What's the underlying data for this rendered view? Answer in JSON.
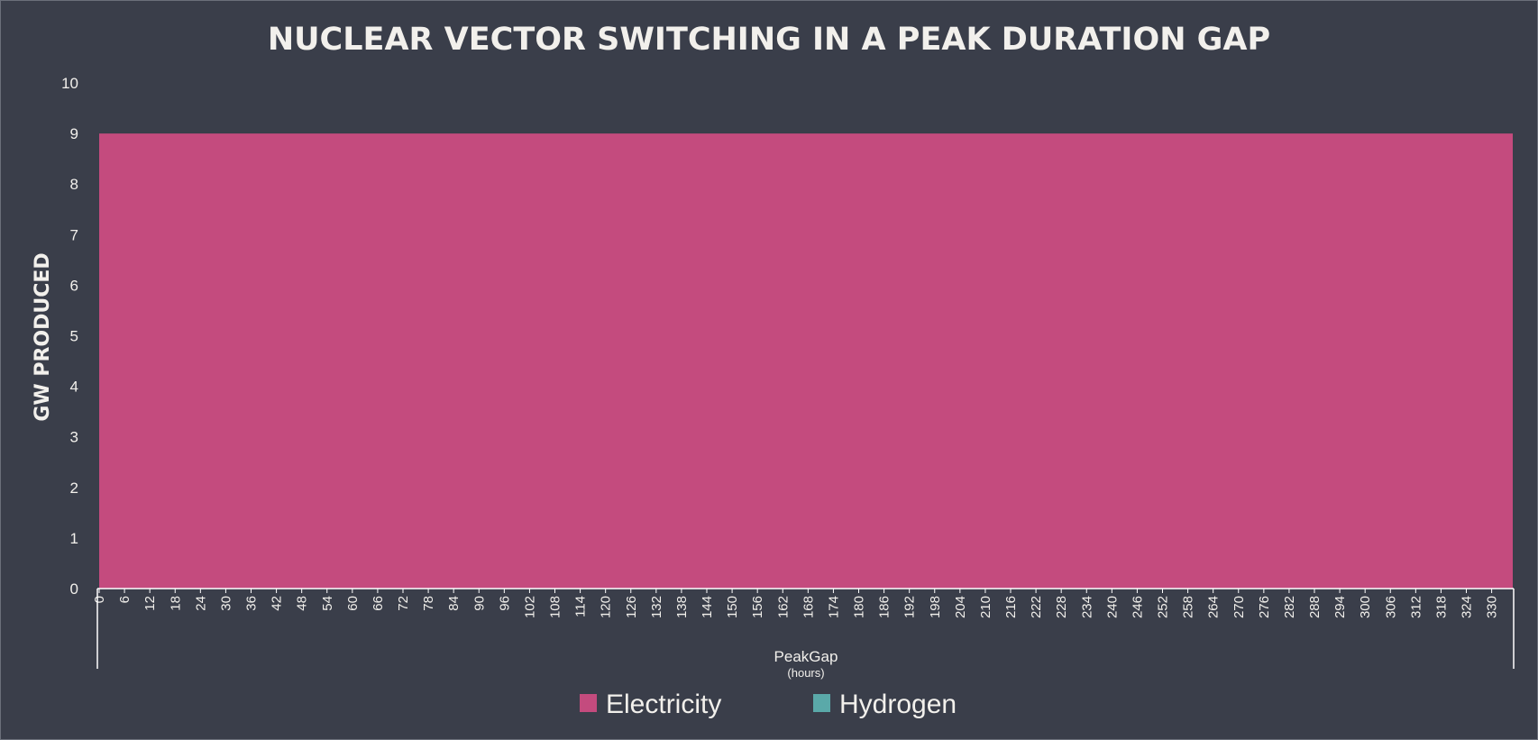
{
  "chart_data": {
    "type": "area",
    "title": "NUCLEAR VECTOR SWITCHING IN A PEAK DURATION GAP",
    "ylabel": "GW PRODUCED",
    "xlabel": "PeakGap",
    "xlabel_unit": "(hours)",
    "ylim": [
      0,
      10
    ],
    "yticks": [
      0,
      1,
      2,
      3,
      4,
      5,
      6,
      7,
      8,
      9,
      10
    ],
    "xlim": [
      0,
      335
    ],
    "xticks": [
      0,
      6,
      12,
      18,
      24,
      30,
      36,
      42,
      48,
      54,
      60,
      66,
      72,
      78,
      84,
      90,
      96,
      102,
      108,
      114,
      120,
      126,
      132,
      138,
      144,
      150,
      156,
      162,
      168,
      174,
      180,
      186,
      192,
      198,
      204,
      210,
      216,
      222,
      228,
      234,
      240,
      246,
      252,
      258,
      264,
      270,
      276,
      282,
      288,
      294,
      300,
      306,
      312,
      318,
      324,
      330
    ],
    "x": [
      0,
      335
    ],
    "series": [
      {
        "name": "Electricity",
        "color": "#c44b7e",
        "values": [
          9,
          9
        ]
      },
      {
        "name": "Hydrogen",
        "color": "#5aa9a9",
        "values": [
          0,
          0
        ]
      }
    ],
    "legend_position": "bottom",
    "grid": false
  }
}
